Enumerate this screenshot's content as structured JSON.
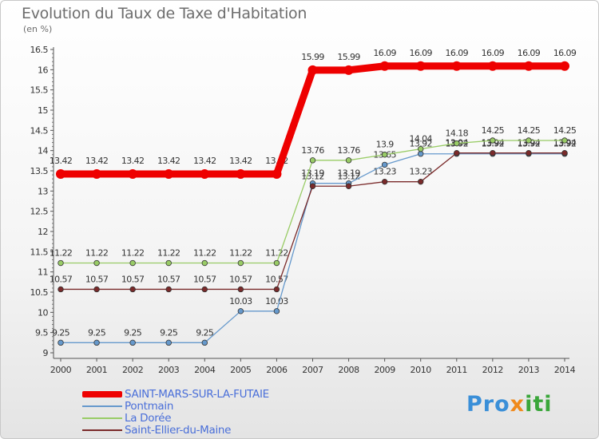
{
  "title": "Evolution du Taux de Taxe d'Habitation",
  "subtitle": "(en %)",
  "logo": {
    "part1": "Pro",
    "part2": "x",
    "part3": "iti"
  },
  "chart_data": {
    "type": "line",
    "title": "Evolution du Taux de Taxe d'Habitation",
    "ylabel": "(en %)",
    "xlabel": "",
    "x": [
      "2000",
      "2001",
      "2002",
      "2003",
      "2004",
      "2005",
      "2006",
      "2007",
      "2008",
      "2009",
      "2010",
      "2011",
      "2012",
      "2013",
      "2014"
    ],
    "ylim": [
      9,
      16.5
    ],
    "yticks": [
      "9",
      "9.5",
      "10",
      "10.5",
      "11",
      "11.5",
      "12",
      "12.5",
      "13",
      "13.5",
      "14",
      "14.5",
      "15",
      "15.5",
      "16",
      "16.5"
    ],
    "grid": false,
    "legend": "bottom-left",
    "series": [
      {
        "name": "SAINT-MARS-SUR-LA-FUTAIE",
        "color": "#ee0000",
        "values": [
          13.42,
          13.42,
          13.42,
          13.42,
          13.42,
          13.42,
          13.42,
          15.99,
          15.99,
          16.09,
          16.09,
          16.09,
          16.09,
          16.09,
          16.09
        ],
        "labels": [
          "13.42",
          "13.42",
          "13.42",
          "13.42",
          "13.42",
          "13.42",
          "13.42",
          "15.99",
          "15.99",
          "16.09",
          "16.09",
          "16.09",
          "16.09",
          "16.09",
          "16.09"
        ]
      },
      {
        "name": "Pontmain",
        "color": "#6699cc",
        "values": [
          9.25,
          9.25,
          9.25,
          9.25,
          9.25,
          10.03,
          10.03,
          13.19,
          13.19,
          13.65,
          13.92,
          13.92,
          13.92,
          13.92,
          13.92
        ],
        "labels": [
          "9.25",
          "9.25",
          "9.25",
          "9.25",
          "9.25",
          "10.03",
          "10.03",
          "13.19",
          "13.19",
          "13.65",
          "13.92",
          "13.92",
          "13.92",
          "13.92",
          "13.92"
        ]
      },
      {
        "name": "La Dorée",
        "color": "#99cc66",
        "values": [
          11.22,
          11.22,
          11.22,
          11.22,
          11.22,
          11.22,
          11.22,
          13.76,
          13.76,
          13.9,
          14.04,
          14.18,
          14.25,
          14.25,
          14.25
        ],
        "labels": [
          "11.22",
          "11.22",
          "11.22",
          "11.22",
          "11.22",
          "11.22",
          "11.22",
          "13.76",
          "13.76",
          "13.9",
          "14.04",
          "14.18",
          "14.25",
          "14.25",
          "14.25"
        ]
      },
      {
        "name": "Saint-Ellier-du-Maine",
        "color": "#7a2a2a",
        "values": [
          10.57,
          10.57,
          10.57,
          10.57,
          10.57,
          10.57,
          10.57,
          13.12,
          13.12,
          13.23,
          13.23,
          13.94,
          13.94,
          13.94,
          13.94
        ],
        "labels": [
          "10.57",
          "10.57",
          "10.57",
          "10.57",
          "10.57",
          "10.57",
          "10.57",
          "13.12",
          "13.12",
          "13.23",
          "13.23",
          "13.94",
          "13.94",
          "13.94",
          "13.94"
        ]
      }
    ]
  }
}
